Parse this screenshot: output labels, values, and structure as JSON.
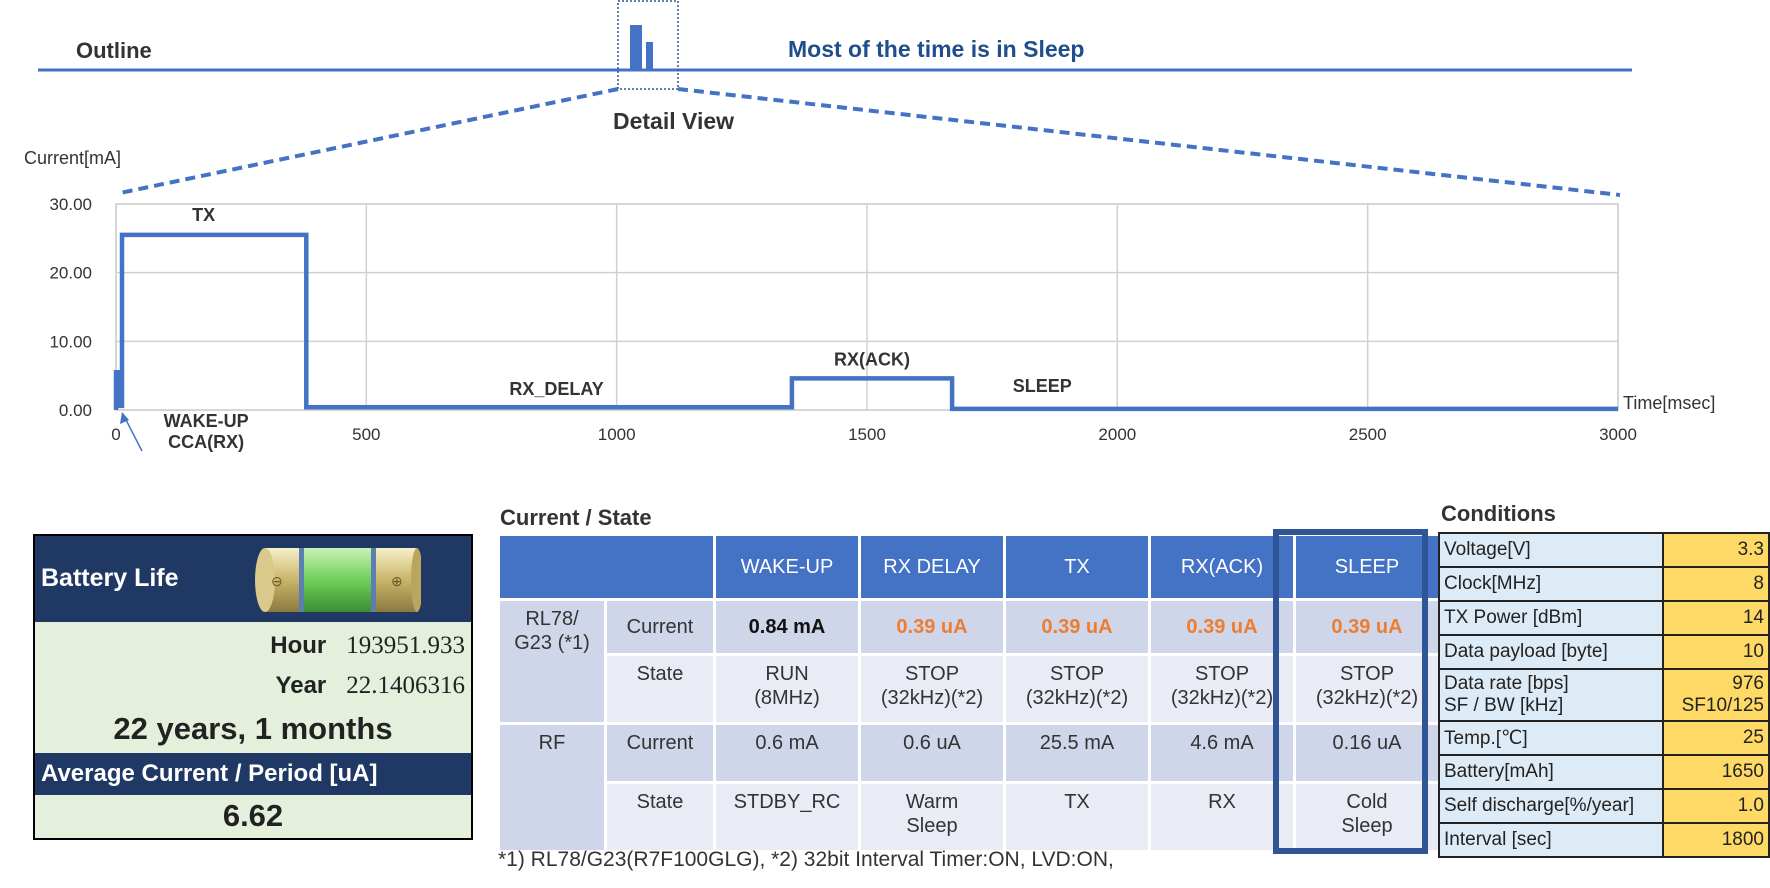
{
  "outline": {
    "title": "Outline",
    "message": "Most of the time is in Sleep"
  },
  "detail": {
    "title": "Detail View"
  },
  "chart_data": {
    "type": "line",
    "ylabel": "Current[mA]",
    "xlabel": "Time[msec]",
    "xlim": [
      0,
      3000
    ],
    "ylim": [
      0,
      30
    ],
    "x_ticks": [
      "0",
      "500",
      "1000",
      "1500",
      "2000",
      "2500",
      "3000"
    ],
    "y_ticks": [
      "0.00",
      "10.00",
      "20.00",
      "30.00"
    ],
    "grid": true,
    "series": [
      {
        "x": [
          0,
          0,
          5,
          5,
          12,
          12,
          380,
          380,
          1350,
          1350,
          1670,
          1670,
          3000
        ],
        "y": [
          0,
          5.5,
          5.5,
          0.6,
          0.6,
          25.5,
          25.5,
          0.4,
          0.4,
          4.6,
          4.6,
          0.16,
          0.16
        ]
      }
    ],
    "annotations": [
      {
        "text": "TX",
        "x": 175,
        "y": 27.5
      },
      {
        "text": "RX_DELAY",
        "x": 880,
        "y": 2.2
      },
      {
        "text": "RX(ACK)",
        "x": 1510,
        "y": 6.5
      },
      {
        "text": "SLEEP",
        "x": 1850,
        "y": 2.6
      },
      {
        "text": "WAKE-UP",
        "x": 180,
        "y": -2.5
      },
      {
        "text": "CCA(RX)",
        "x": 180,
        "y": -5.5
      }
    ]
  },
  "battery": {
    "title": "Battery Life",
    "hour_label": "Hour",
    "hour_value": "193951.933",
    "year_label": "Year",
    "year_value": "22.1406316",
    "years_text": "22 years, 1 months",
    "avg_title": "Average Current / Period [uA]",
    "avg_value": "6.62"
  },
  "state_table": {
    "title": "Current / State",
    "headers": [
      "WAKE-UP",
      "RX DELAY",
      "TX",
      "RX(ACK)",
      "SLEEP"
    ],
    "rl78": {
      "label": "RL78/ G23 (*1)",
      "current_label": "Current",
      "state_label": "State",
      "current": [
        "0.84 mA",
        "0.39 uA",
        "0.39 uA",
        "0.39 uA",
        "0.39 uA"
      ],
      "state_l1": [
        "RUN",
        "STOP",
        "STOP",
        "STOP",
        "STOP"
      ],
      "state_l2": [
        "(8MHz)",
        "(32kHz)(*2)",
        "(32kHz)(*2)",
        "(32kHz)(*2)",
        "(32kHz)(*2)"
      ]
    },
    "rf": {
      "label": "RF",
      "current_label": "Current",
      "state_label": "State",
      "current": [
        "0.6 mA",
        "0.6 uA",
        "25.5 mA",
        "4.6 mA",
        "0.16 uA"
      ],
      "state_l1": [
        "STDBY_RC",
        "Warm",
        "TX",
        "RX",
        "Cold"
      ],
      "state_l2": [
        "",
        "Sleep",
        "",
        "",
        "Sleep"
      ]
    },
    "footnote": "*1) RL78/G23(R7F100GLG), *2) 32bit Interval Timer:ON, LVD:ON,"
  },
  "conditions": {
    "title": "Conditions",
    "rows": [
      {
        "key": "Voltage[V]",
        "value": "3.3"
      },
      {
        "key": "Clock[MHz]",
        "value": "8"
      },
      {
        "key": "TX Power [dBm]",
        "value": "14"
      },
      {
        "key": "Data payload [byte]",
        "value": "10"
      },
      {
        "key": "Data rate [bps]",
        "key2": "SF / BW [kHz]",
        "value": "976",
        "value2": "SF10/125"
      },
      {
        "key": "Temp.[℃]",
        "value": "25"
      },
      {
        "key": "Battery[mAh]",
        "value": "1650"
      },
      {
        "key": "Self discharge[%/year]",
        "value": "1.0"
      },
      {
        "key": "Interval [sec]",
        "value": "1800"
      }
    ]
  },
  "colors": {
    "accent": "#4472c4",
    "navy": "#203864",
    "orange": "#ed7d31",
    "yellow": "#ffd966",
    "lightblue": "#ddebf7"
  }
}
